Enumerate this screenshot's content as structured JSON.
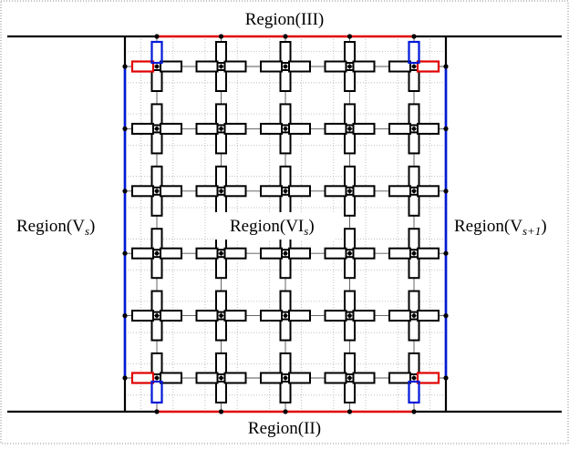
{
  "labels": {
    "top": "Region(III)",
    "bottom": "Region(II)",
    "left_base": "Region(V",
    "left_sub": "s",
    "left_close": ")",
    "center_base": "Region(VI",
    "center_sub": "s",
    "center_close": ")",
    "right_base": "Region(V",
    "right_sub": "s+1",
    "right_close": ")"
  },
  "grid": {
    "rows": 6,
    "cols": 5
  },
  "colors": {
    "boundary_black": "#000000",
    "boundary_red": "#e00000",
    "boundary_blue": "#0018d8",
    "grid_dotted": "#b4b4b4",
    "frame_dotted": "#8a8a8a"
  }
}
